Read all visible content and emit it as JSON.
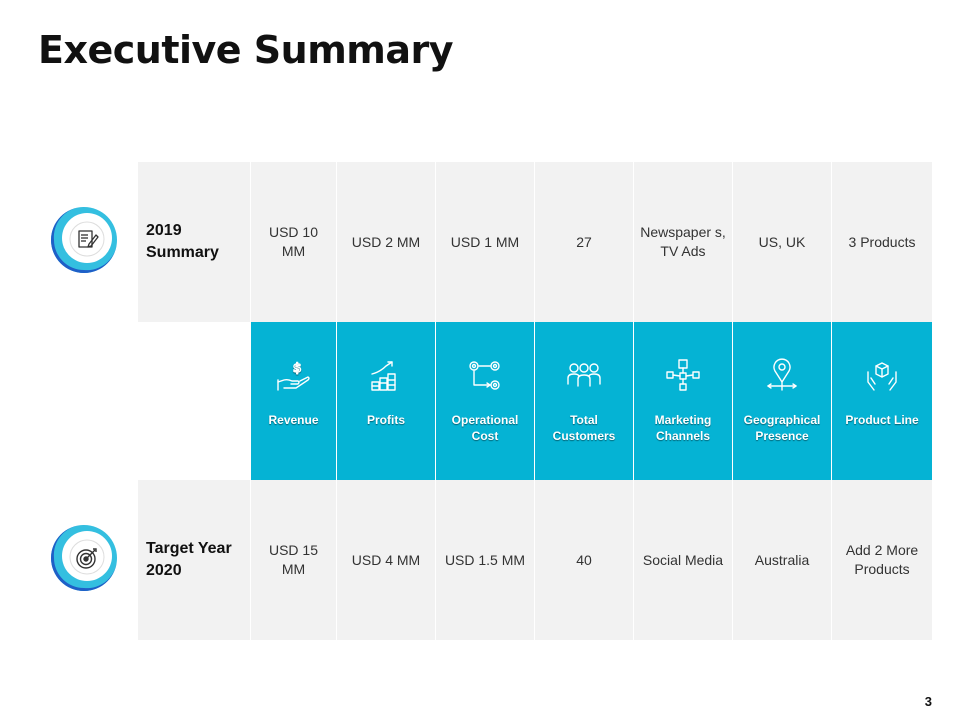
{
  "title": "Executive Summary",
  "page_number": "3",
  "colors": {
    "accent": "#05b3d4",
    "ring_dark": "#1f5fc7",
    "ring_light": "#34bfe0",
    "cell_bg": "#f2f2f2"
  },
  "row_2019": {
    "label": "2019 Summary",
    "icon": "document-pen-icon",
    "values": [
      "USD 10 MM",
      "USD 2 MM",
      "USD 1 MM",
      "27",
      "Newspaper s, TV Ads",
      "US, UK",
      "3 Products"
    ]
  },
  "headers": [
    {
      "label": "Revenue",
      "icon": "hand-dollar-icon"
    },
    {
      "label": "Profits",
      "icon": "coins-growth-icon"
    },
    {
      "label": "Operational Cost",
      "icon": "gears-flow-icon"
    },
    {
      "label": "Total Customers",
      "icon": "people-group-icon"
    },
    {
      "label": "Marketing Channels",
      "icon": "network-channels-icon"
    },
    {
      "label": "Geographical Presence",
      "icon": "location-pin-icon"
    },
    {
      "label": "Product Line",
      "icon": "hands-box-icon"
    }
  ],
  "row_2020": {
    "label": "Target Year 2020",
    "icon": "target-dart-icon",
    "values": [
      "USD 15 MM",
      "USD 4 MM",
      "USD 1.5 MM",
      "40",
      "Social Media",
      "Australia",
      "Add 2 More Products"
    ]
  }
}
